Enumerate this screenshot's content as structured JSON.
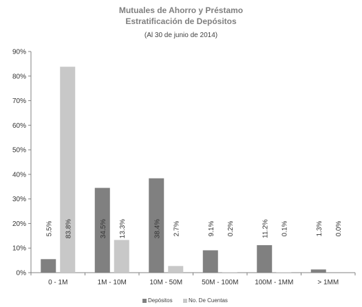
{
  "title": "Mutuales de Ahorro y Préstamo",
  "title2": "Estratificación de Depósitos",
  "subtitle": "(Al 30 de junio de 2014)",
  "colors": {
    "series0": "#808080",
    "series1": "#c8c8c8",
    "axis": "#808080",
    "text": "#333333"
  },
  "chart_data": {
    "type": "bar",
    "title": "Mutuales de Ahorro y Préstamo Estratificación de Depósitos",
    "subtitle": "(Al 30 de junio de 2014)",
    "categories": [
      "0 - 1M",
      "1M - 10M",
      "10M - 50M",
      "50M - 100M",
      "100M - 1MM",
      "> 1MM"
    ],
    "series": [
      {
        "name": "Depósitos",
        "values": [
          5.5,
          34.5,
          38.4,
          9.1,
          11.2,
          1.3
        ],
        "labels": [
          "5.5%",
          "34.5%",
          "38.4%",
          "9.1%",
          "11.2%",
          "1.3%"
        ]
      },
      {
        "name": "No. De Cuentas",
        "values": [
          83.8,
          13.3,
          2.7,
          0.2,
          0.1,
          0.0
        ],
        "labels": [
          "83.8%",
          "13.3%",
          "2.7%",
          "0.2%",
          "0.1%",
          "0.0%"
        ]
      }
    ],
    "ylim": [
      0,
      90
    ],
    "yticks": [
      0,
      10,
      20,
      30,
      40,
      50,
      60,
      70,
      80,
      90
    ],
    "ytick_labels": [
      "0%",
      "10%",
      "20%",
      "30%",
      "40%",
      "50%",
      "60%",
      "70%",
      "80%",
      "90%"
    ],
    "grid": false,
    "legend_position": "bottom"
  }
}
